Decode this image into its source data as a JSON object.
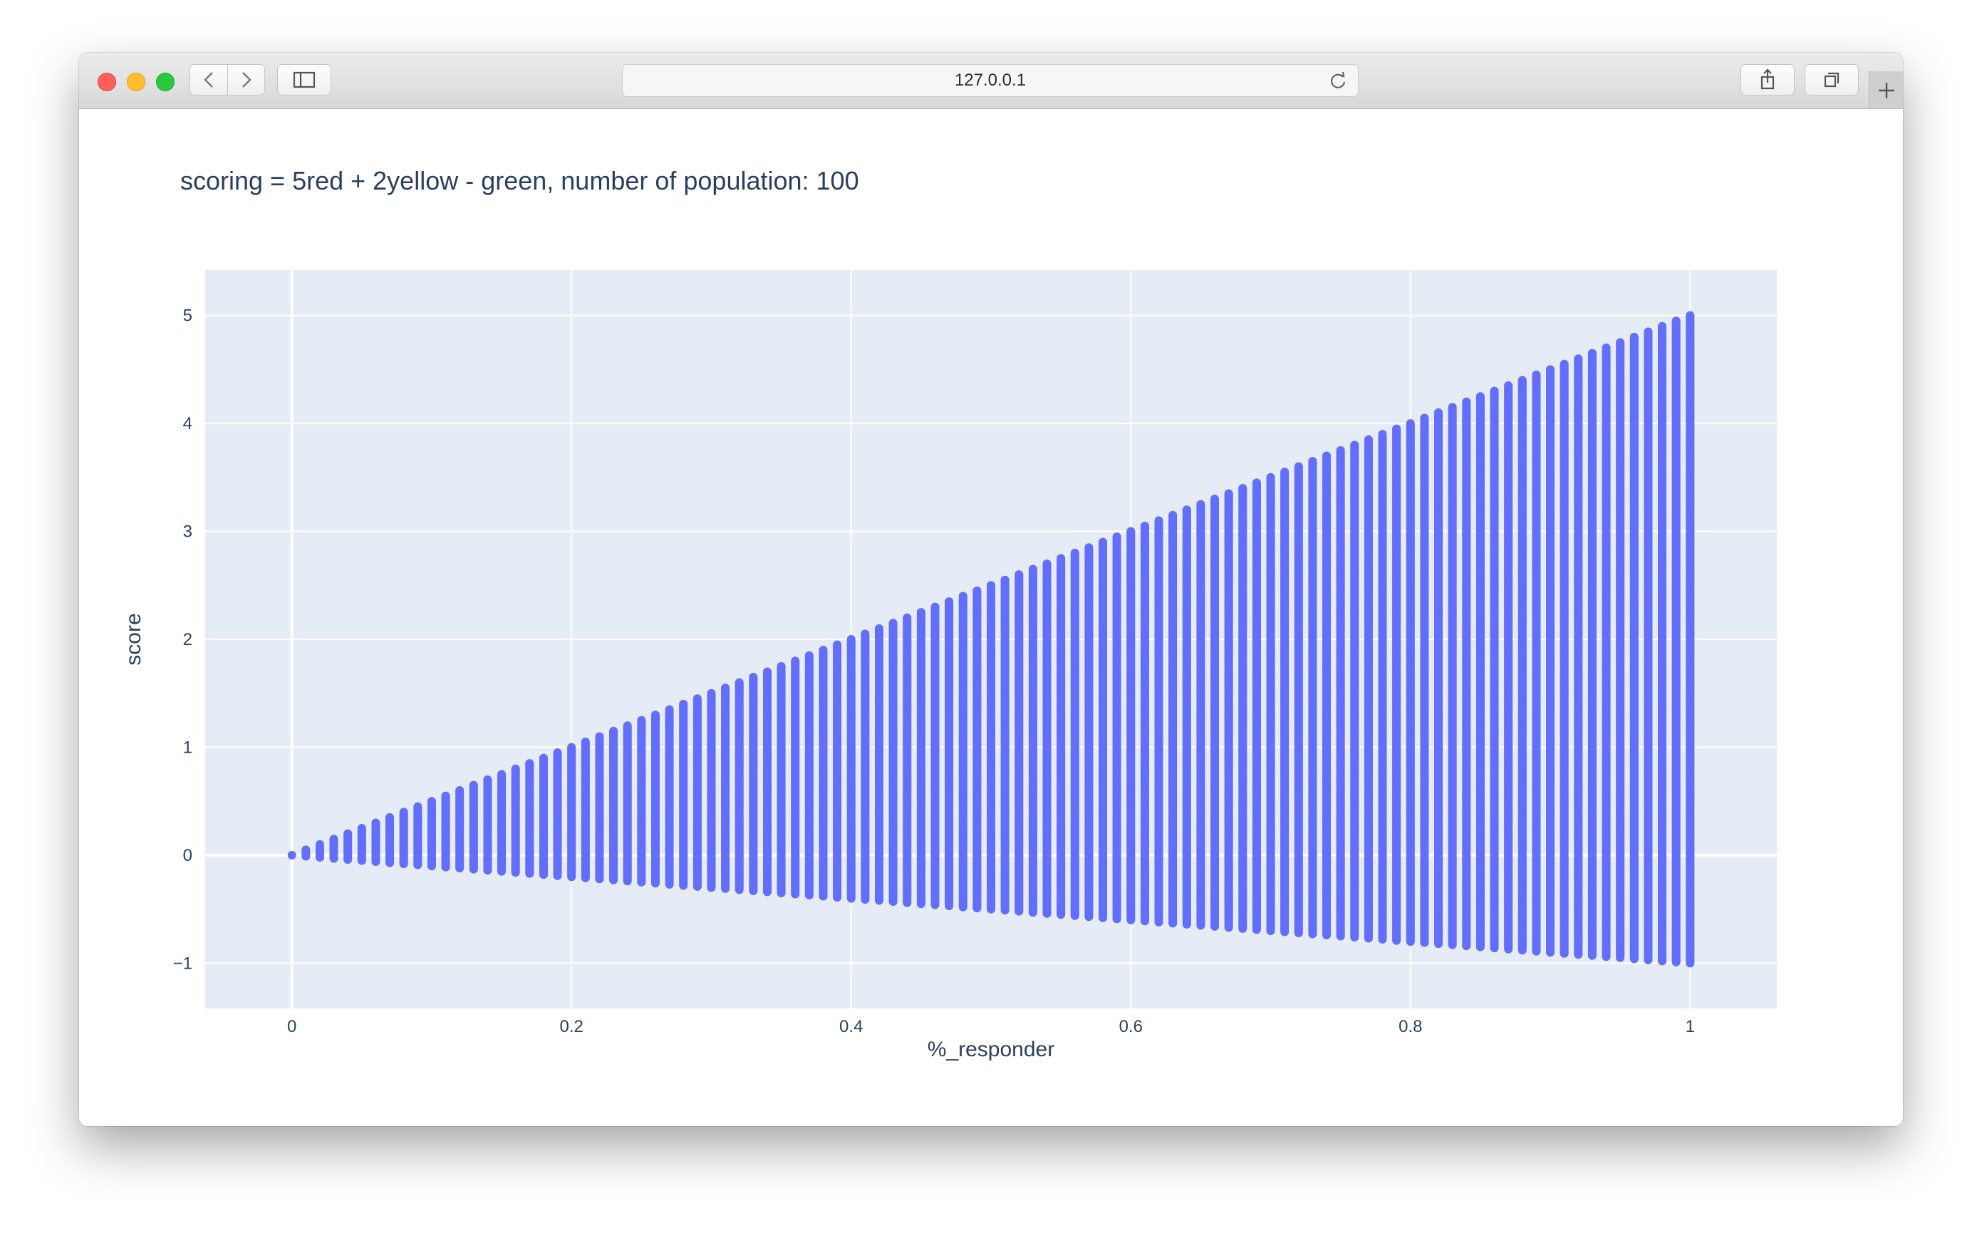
{
  "browser": {
    "url": "127.0.0.1",
    "icons": {
      "back": "chevron-left-icon",
      "forward": "chevron-right-icon",
      "sidebar": "sidebar-icon",
      "reload": "reload-icon",
      "share": "share-icon",
      "tabs": "tabs-icon",
      "new_tab": "plus-icon"
    }
  },
  "chart_data": {
    "type": "scatter",
    "title": "scoring = 5red + 2yellow - green, number of population: 100",
    "xlabel": "%_responder",
    "ylabel": "score",
    "x_ticks": [
      "0",
      "0.2",
      "0.4",
      "0.6",
      "0.8",
      "1"
    ],
    "y_ticks": [
      "5",
      "4",
      "3",
      "2",
      "1",
      "0",
      "−1"
    ],
    "xlim": [
      -0.062,
      1.062
    ],
    "ylim": [
      -1.42,
      5.42
    ],
    "grid": true,
    "marker_color": "#636efa",
    "plot_background": "#e5ecf6",
    "population": 100,
    "series": [
      {
        "x_start": 0,
        "x_end": 1,
        "x_step": 0.01,
        "y_max_formula": "5 * x",
        "y_min_formula": "-1 * x",
        "y_step": 0.01
      }
    ]
  }
}
